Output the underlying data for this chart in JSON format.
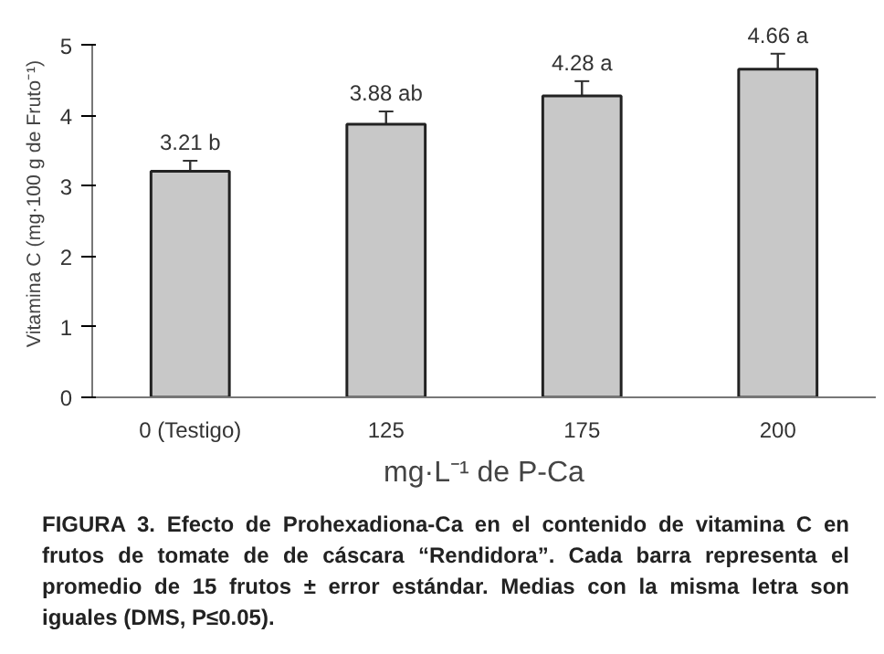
{
  "chart_data": {
    "type": "bar",
    "xlabel": "mg·L⁻¹ de P-Ca",
    "ylabel": "Vitamina C (mg·100 g de Fruto⁻¹)",
    "categories": [
      "0 (Testigo)",
      "125",
      "175",
      "200"
    ],
    "values": [
      3.21,
      3.88,
      4.28,
      4.66
    ],
    "errors": [
      0.15,
      0.18,
      0.21,
      0.22
    ],
    "value_labels": [
      "3.21 b",
      "3.88 ab",
      "4.28 a",
      "4.66 a"
    ],
    "color": "#c8c8c8",
    "ylim": [
      0,
      5
    ],
    "yticks": [
      0,
      1,
      2,
      3,
      4,
      5
    ],
    "grid": false,
    "annotations": [
      "FIGURA 3. Efecto de Prohexadiona-Ca en el contenido de vitamina C en frutos de tomate de de cáscara “Rendidora”. Cada barra representa el promedio de 15 frutos ± error estándar. Medias con la misma letra son iguales (DMS, P≤0.05)."
    ]
  }
}
